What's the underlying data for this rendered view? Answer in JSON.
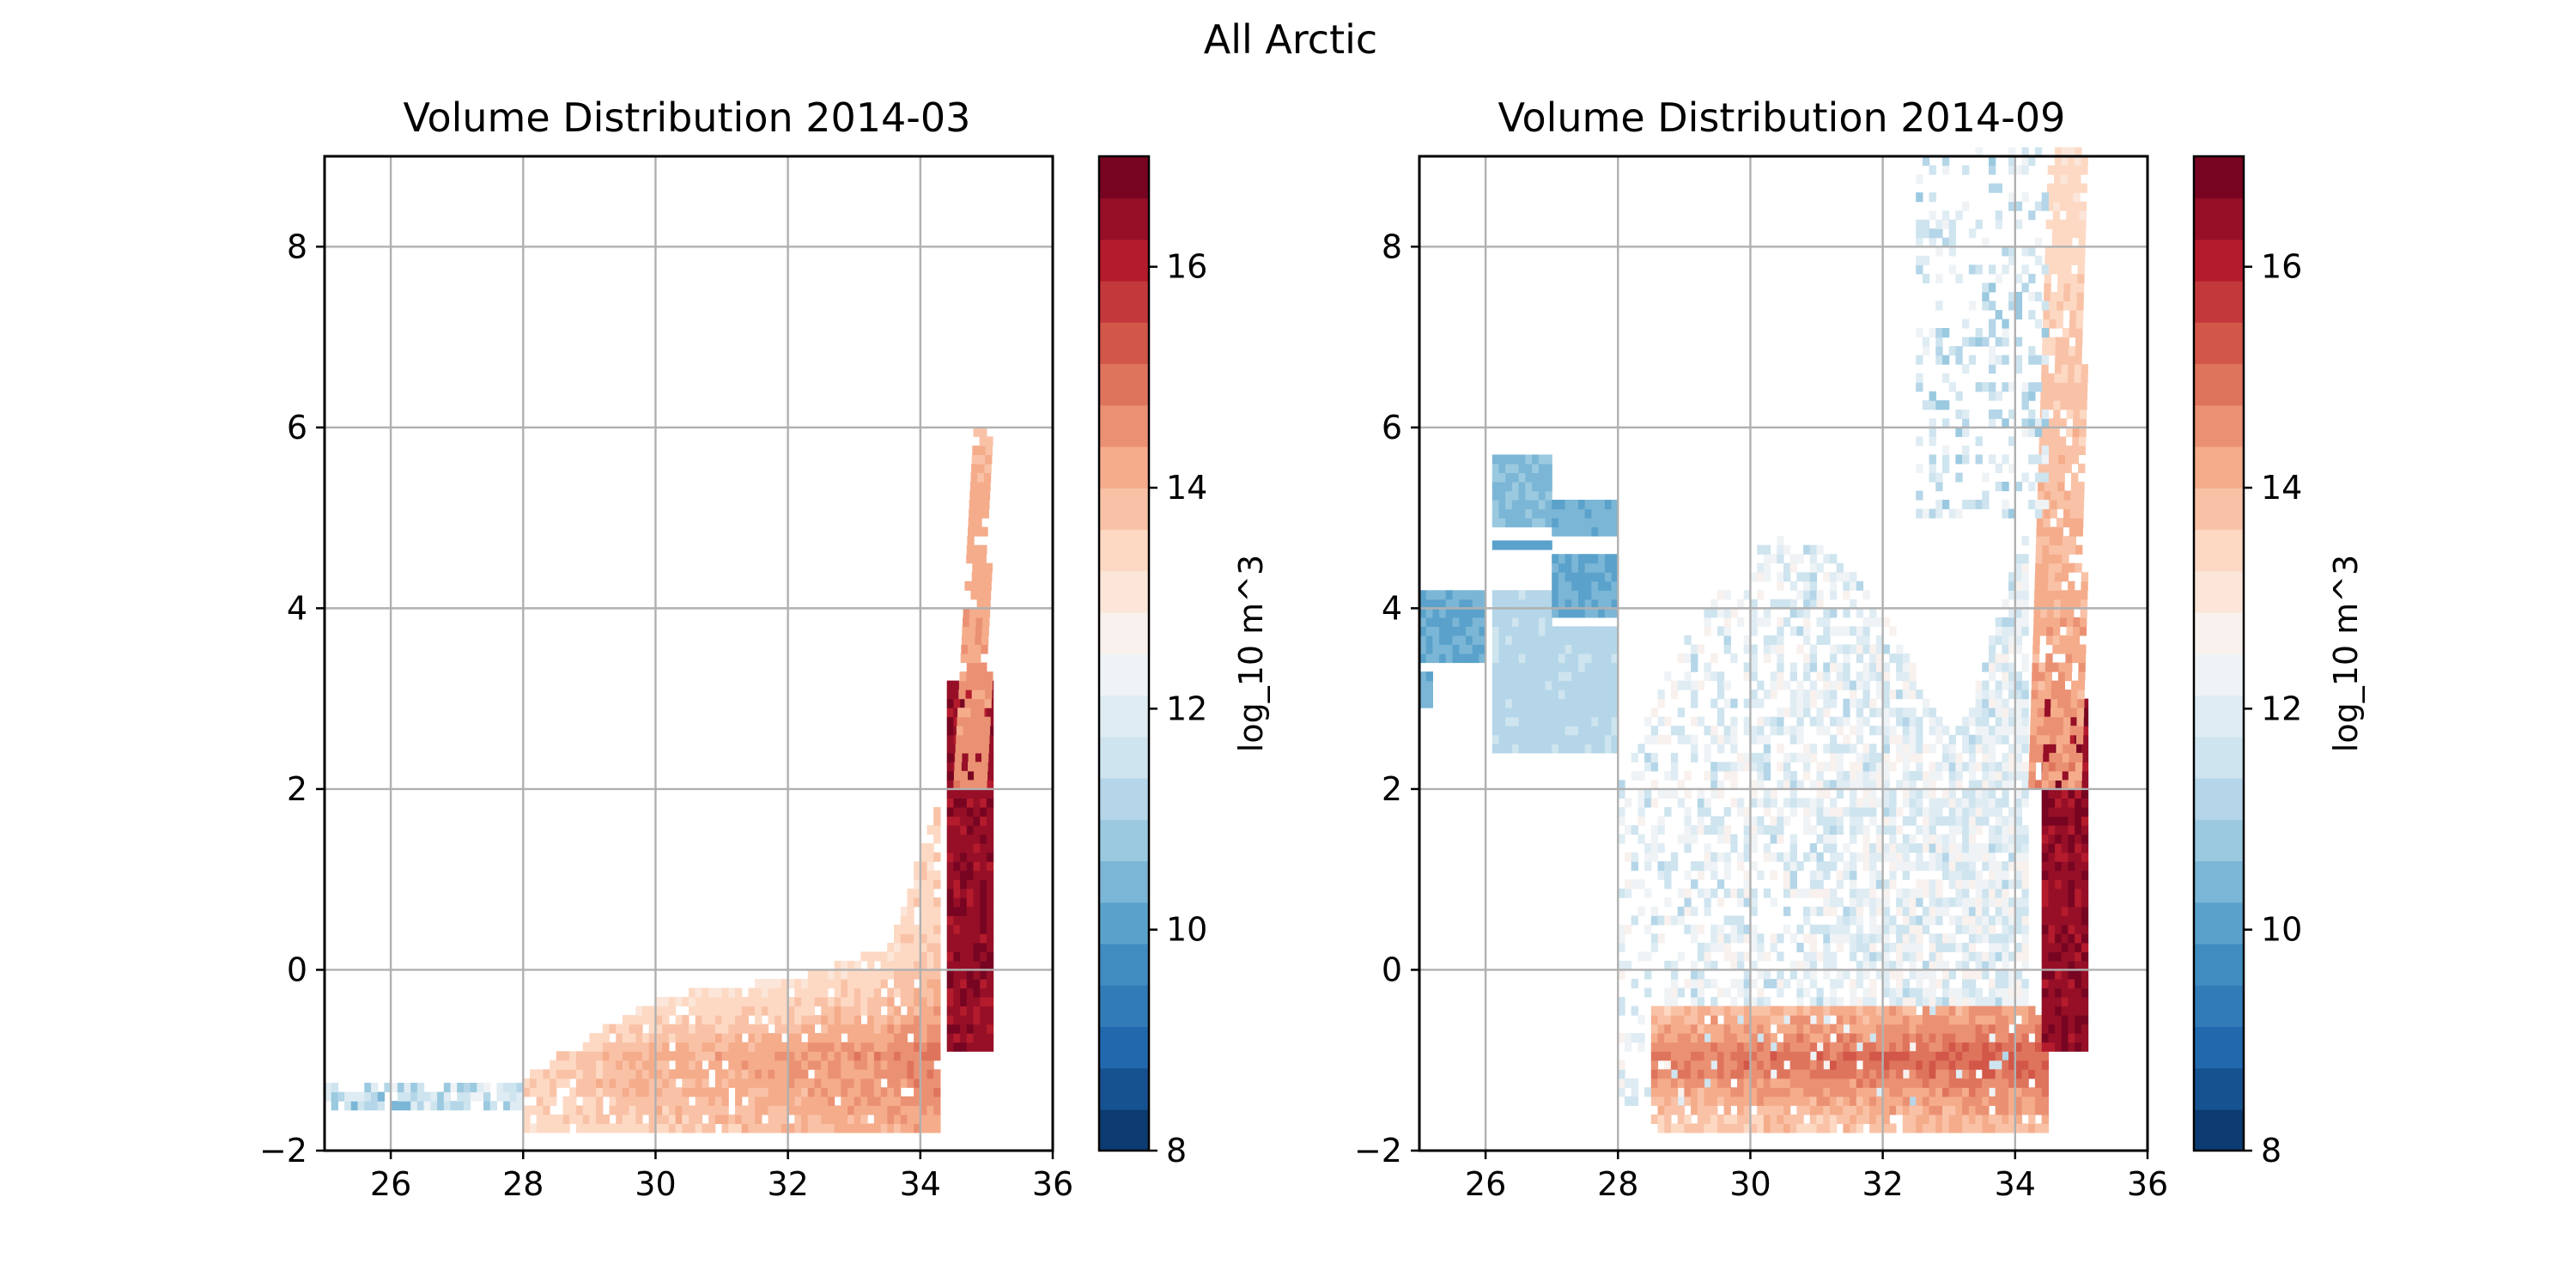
{
  "figure": {
    "suptitle": "All Arctic"
  },
  "chart_data": [
    {
      "type": "heatmap",
      "title": "Volume Distribution 2014-03",
      "xlabel": "",
      "ylabel": "",
      "xlim": [
        25,
        36
      ],
      "ylim": [
        -2,
        9
      ],
      "xticks": [
        26,
        28,
        30,
        32,
        34,
        36
      ],
      "xtick_labels": [
        "26",
        "28",
        "30",
        "32",
        "34",
        "36"
      ],
      "yticks": [
        -2,
        0,
        2,
        4,
        6,
        8
      ],
      "ytick_labels": [
        "−2",
        "0",
        "2",
        "4",
        "6",
        "8"
      ],
      "grid": true,
      "colorbar": {
        "label": "log_10 m^3",
        "min": 8,
        "max": 17,
        "ticks": [
          8,
          10,
          12,
          14,
          16
        ],
        "tick_labels": [
          "8",
          "10",
          "12",
          "14",
          "16"
        ],
        "colormap": "RdBu_r",
        "levels": 24
      },
      "regions": [
        {
          "kind": "fresh_tail",
          "x": [
            25.0,
            28.0
          ],
          "y": [
            -1.55,
            -1.3
          ],
          "value_range": [
            10.3,
            12.3
          ],
          "description_level": "low"
        },
        {
          "kind": "body",
          "x": [
            28.0,
            34.3
          ],
          "y_bottom": -1.8,
          "y_top_at_x": [
            [
              28,
              -1.2
            ],
            [
              30,
              -0.35
            ],
            [
              32,
              -0.15
            ],
            [
              33.5,
              0.2
            ],
            [
              34.3,
              2.0
            ]
          ],
          "value_range": [
            12.5,
            15.5
          ]
        },
        {
          "kind": "core",
          "x": [
            34.4,
            35.1
          ],
          "y": [
            -0.9,
            3.2
          ],
          "value_range": [
            15.5,
            16.8
          ]
        },
        {
          "kind": "vertical_spike",
          "x": [
            34.5,
            35.0
          ],
          "y": [
            2.0,
            5.9
          ],
          "value_range": [
            13.5,
            14.8
          ]
        }
      ]
    },
    {
      "type": "heatmap",
      "title": "Volume Distribution 2014-09",
      "xlabel": "",
      "ylabel": "",
      "xlim": [
        25,
        36
      ],
      "ylim": [
        -2,
        9
      ],
      "xticks": [
        26,
        28,
        30,
        32,
        34,
        36
      ],
      "xtick_labels": [
        "26",
        "28",
        "30",
        "32",
        "34",
        "36"
      ],
      "yticks": [
        -2,
        0,
        2,
        4,
        6,
        8
      ],
      "ytick_labels": [
        "−2",
        "0",
        "2",
        "4",
        "6",
        "8"
      ],
      "grid": true,
      "colorbar": {
        "label": "log_10 m^3",
        "min": 8,
        "max": 17,
        "ticks": [
          8,
          10,
          12,
          14,
          16
        ],
        "tick_labels": [
          "8",
          "10",
          "12",
          "14",
          "16"
        ],
        "colormap": "RdBu_r",
        "levels": 24
      },
      "regions": [
        {
          "kind": "fresh_blocks",
          "x": [
            25.0,
            28.0
          ],
          "y": [
            2.4,
            5.6
          ],
          "value_range": [
            9.8,
            11.5
          ]
        },
        {
          "kind": "diffuse_cloud",
          "x": [
            28.0,
            34.2
          ],
          "y": [
            -1.5,
            5.0
          ],
          "value_range": [
            11.3,
            12.8
          ]
        },
        {
          "kind": "bottom_band",
          "x": [
            28.5,
            34.5
          ],
          "y": [
            -1.8,
            -0.4
          ],
          "value_range": [
            13.0,
            15.3
          ]
        },
        {
          "kind": "core",
          "x": [
            34.4,
            35.1
          ],
          "y": [
            -0.9,
            3.0
          ],
          "value_range": [
            15.5,
            16.8
          ]
        },
        {
          "kind": "vertical_spike",
          "x": [
            34.2,
            35.0
          ],
          "y": [
            2.0,
            9.0
          ],
          "value_range": [
            12.5,
            14.8
          ]
        },
        {
          "kind": "top_column",
          "x": [
            32.5,
            34.5
          ],
          "y": [
            5.0,
            9.0
          ],
          "value_range": [
            10.8,
            12.3
          ]
        }
      ]
    }
  ]
}
